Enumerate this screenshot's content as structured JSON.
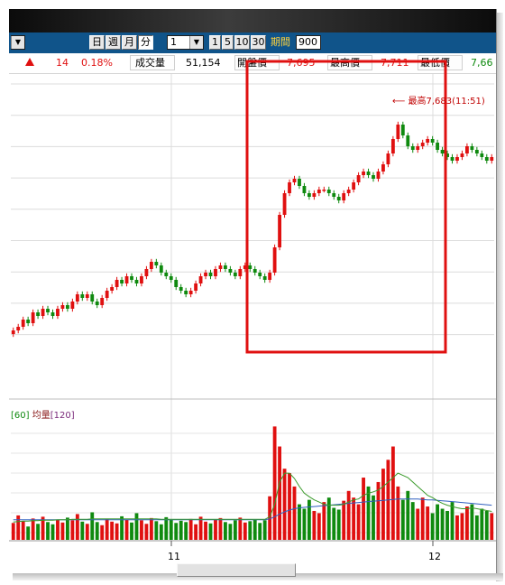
{
  "toolbar": {
    "period_buttons": [
      "日",
      "週",
      "月",
      "分"
    ],
    "period_active": "分",
    "interval_select": "1",
    "minute_buttons": [
      "1",
      "5",
      "10",
      "30"
    ],
    "period_label": "期間",
    "period_value": "900"
  },
  "quote": {
    "change": "14",
    "change_pct": "0.18%",
    "volume_label": "成交量",
    "volume_value": "51,154",
    "open_label": "開盤價",
    "open_value": "7,695",
    "high_label": "最高價",
    "high_value": "7,711",
    "low_label": "最低價",
    "low_value": "7,66"
  },
  "colors": {
    "up": "#e01010",
    "down": "#0f8a0f",
    "ma_long": "#7a2a7a",
    "ma_short": "#2a7a2a",
    "highlight": "#e01010"
  },
  "chart_data": {
    "type": "candlestick",
    "annotation": "最高7,683(11:51)",
    "x_tick_labels": [
      "11",
      "12"
    ],
    "volume_legend": {
      "prefix": "[60]",
      "name": "均量",
      "suffix": "[120]"
    },
    "highlight_box": true,
    "price": [
      7626,
      7627,
      7629,
      7628,
      7631,
      7630,
      7632,
      7631,
      7630,
      7632,
      7633,
      7632,
      7634,
      7636,
      7635,
      7636,
      7634,
      7633,
      7635,
      7637,
      7638,
      7640,
      7639,
      7641,
      7640,
      7639,
      7641,
      7643,
      7645,
      7644,
      7642,
      7641,
      7640,
      7638,
      7637,
      7636,
      7637,
      7639,
      7641,
      7642,
      7641,
      7643,
      7644,
      7643,
      7642,
      7641,
      7643,
      7644,
      7643,
      7642,
      7641,
      7640,
      7642,
      7649,
      7658,
      7664,
      7667,
      7668,
      7666,
      7664,
      7663,
      7664,
      7665,
      7665,
      7664,
      7663,
      7662,
      7664,
      7665,
      7667,
      7669,
      7670,
      7669,
      7668,
      7670,
      7672,
      7675,
      7679,
      7683,
      7680,
      7677,
      7676,
      7677,
      7678,
      7679,
      7678,
      7676,
      7675,
      7674,
      7673,
      7674,
      7675,
      7677,
      7676,
      7675,
      7674,
      7673,
      7674
    ],
    "volume": [
      38,
      55,
      42,
      30,
      48,
      36,
      52,
      40,
      35,
      45,
      39,
      50,
      44,
      58,
      41,
      36,
      62,
      40,
      33,
      47,
      41,
      37,
      53,
      45,
      39,
      60,
      44,
      36,
      49,
      42,
      35,
      51,
      46,
      38,
      43,
      40,
      47,
      35,
      52,
      41,
      37,
      45,
      49,
      40,
      36,
      44,
      50,
      39,
      42,
      46,
      38,
      44,
      98,
      255,
      210,
      160,
      150,
      120,
      80,
      70,
      90,
      65,
      60,
      85,
      95,
      72,
      68,
      88,
      110,
      95,
      80,
      140,
      120,
      100,
      130,
      160,
      180,
      210,
      120,
      90,
      110,
      85,
      70,
      95,
      75,
      60,
      80,
      70,
      65,
      85,
      55,
      60,
      75,
      80,
      55,
      70,
      65,
      60
    ],
    "ma_short": [
      40,
      41,
      42,
      42,
      43,
      43,
      44,
      44,
      44,
      45,
      45,
      45,
      46,
      46,
      46,
      46,
      47,
      47,
      47,
      47,
      47,
      47,
      47,
      47,
      47,
      47,
      47,
      47,
      47,
      47,
      46,
      46,
      46,
      46,
      46,
      46,
      46,
      46,
      46,
      46,
      46,
      46,
      46,
      46,
      46,
      46,
      46,
      46,
      46,
      46,
      46,
      46,
      52,
      80,
      130,
      150,
      150,
      138,
      120,
      105,
      97,
      90,
      85,
      80,
      78,
      78,
      78,
      80,
      85,
      90,
      92,
      100,
      105,
      108,
      112,
      120,
      130,
      140,
      150,
      145,
      140,
      130,
      120,
      110,
      100,
      95,
      88,
      82,
      78,
      75,
      72,
      70,
      70,
      72,
      70,
      68,
      66,
      64
    ],
    "ma_long": [
      45,
      45,
      45,
      45,
      45,
      45,
      45,
      45,
      45,
      45,
      45,
      45,
      45,
      45,
      45,
      45,
      45,
      45,
      45,
      45,
      45,
      45,
      45,
      45,
      45,
      45,
      45,
      45,
      45,
      45,
      45,
      45,
      45,
      45,
      45,
      45,
      45,
      45,
      45,
      45,
      45,
      45,
      45,
      45,
      45,
      45,
      45,
      45,
      45,
      45,
      45,
      45,
      47,
      52,
      58,
      63,
      67,
      70,
      72,
      73,
      74,
      75,
      76,
      77,
      78,
      79,
      80,
      81,
      82,
      83,
      84,
      85,
      86,
      87,
      88,
      89,
      90,
      91,
      92,
      92,
      92,
      92,
      92,
      91,
      90,
      90,
      89,
      88,
      87,
      86,
      85,
      84,
      83,
      82,
      81,
      80,
      79,
      78
    ]
  }
}
